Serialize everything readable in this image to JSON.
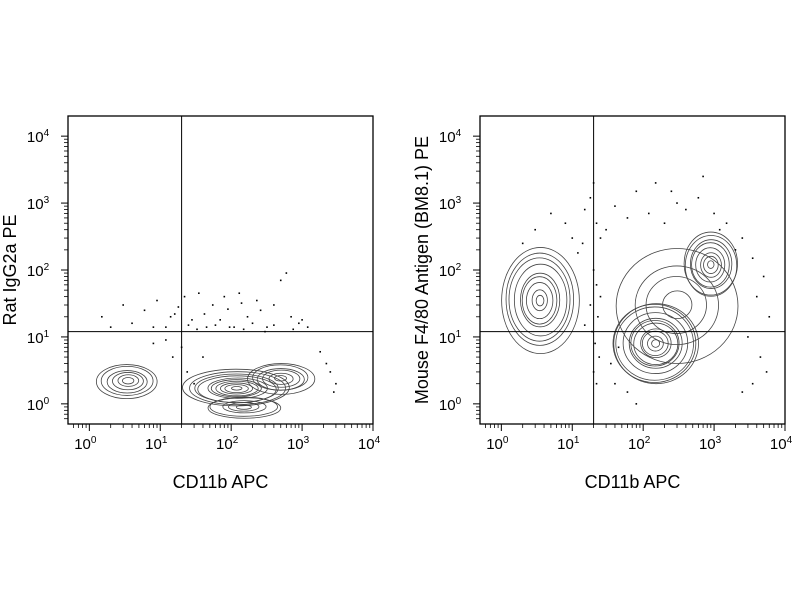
{
  "chart_data": [
    {
      "type": "scatter",
      "subtype": "flow-cytometry-contour",
      "xlabel": "CD11b APC",
      "ylabel": "Rat IgG2a PE",
      "xscale": "log",
      "yscale": "log",
      "xlim": [
        0.5,
        10000
      ],
      "ylim": [
        0.5,
        20000
      ],
      "x_ticks": [
        {
          "base": "10",
          "exp": "0",
          "value": 1
        },
        {
          "base": "10",
          "exp": "1",
          "value": 10
        },
        {
          "base": "10",
          "exp": "2",
          "value": 100
        },
        {
          "base": "10",
          "exp": "3",
          "value": 1000
        },
        {
          "base": "10",
          "exp": "4",
          "value": 10000
        }
      ],
      "y_ticks": [
        {
          "base": "10",
          "exp": "0",
          "value": 1
        },
        {
          "base": "10",
          "exp": "1",
          "value": 10
        },
        {
          "base": "10",
          "exp": "2",
          "value": 100
        },
        {
          "base": "10",
          "exp": "3",
          "value": 1000
        },
        {
          "base": "10",
          "exp": "4",
          "value": 10000
        }
      ],
      "gate": {
        "x": 20,
        "y": 12
      },
      "populations": [
        {
          "x": 3.5,
          "y": 2.2,
          "sx": 0.32,
          "sy": 0.19,
          "levels": 6
        },
        {
          "x": 120,
          "y": 1.7,
          "sx": 0.55,
          "sy": 0.2,
          "levels": 10
        },
        {
          "x": 500,
          "y": 2.4,
          "sx": 0.35,
          "sy": 0.17,
          "levels": 6
        },
        {
          "x": 150,
          "y": 0.9,
          "sx": 0.4,
          "sy": 0.12,
          "levels": 5
        }
      ],
      "events": [
        [
          3,
          30
        ],
        [
          6,
          25
        ],
        [
          9,
          35
        ],
        [
          14,
          20
        ],
        [
          18,
          28
        ],
        [
          22,
          40
        ],
        [
          28,
          18
        ],
        [
          35,
          45
        ],
        [
          42,
          22
        ],
        [
          55,
          30
        ],
        [
          70,
          18
        ],
        [
          90,
          26
        ],
        [
          110,
          14
        ],
        [
          140,
          32
        ],
        [
          170,
          20
        ],
        [
          200,
          16
        ],
        [
          260,
          25
        ],
        [
          320,
          14
        ],
        [
          400,
          30
        ],
        [
          500,
          70
        ],
        [
          600,
          90
        ],
        [
          700,
          20
        ],
        [
          900,
          16
        ],
        [
          1200,
          14
        ],
        [
          25,
          15
        ],
        [
          45,
          14
        ],
        [
          80,
          40
        ],
        [
          130,
          45
        ],
        [
          230,
          35
        ],
        [
          12,
          14
        ],
        [
          16,
          22
        ],
        [
          33,
          13
        ],
        [
          60,
          15
        ],
        [
          95,
          14
        ],
        [
          150,
          13
        ],
        [
          300,
          12
        ],
        [
          400,
          15
        ],
        [
          750,
          13
        ],
        [
          1000,
          18
        ],
        [
          8,
          14
        ],
        [
          4,
          16
        ],
        [
          2,
          14
        ],
        [
          1.5,
          20
        ],
        [
          2500,
          3
        ],
        [
          3000,
          2
        ],
        [
          2800,
          1.5
        ],
        [
          2200,
          4
        ],
        [
          1800,
          6
        ],
        [
          20,
          7
        ],
        [
          15,
          5
        ],
        [
          24,
          3
        ],
        [
          30,
          2
        ],
        [
          12,
          9
        ],
        [
          8,
          8
        ],
        [
          40,
          5
        ]
      ]
    },
    {
      "type": "scatter",
      "subtype": "flow-cytometry-contour",
      "xlabel": "CD11b APC",
      "ylabel": "Mouse F4/80 Antigen (BM8.1) PE",
      "xscale": "log",
      "yscale": "log",
      "xlim": [
        0.5,
        10000
      ],
      "ylim": [
        0.5,
        20000
      ],
      "x_ticks": [
        {
          "base": "10",
          "exp": "0",
          "value": 1
        },
        {
          "base": "10",
          "exp": "1",
          "value": 10
        },
        {
          "base": "10",
          "exp": "2",
          "value": 100
        },
        {
          "base": "10",
          "exp": "3",
          "value": 1000
        },
        {
          "base": "10",
          "exp": "4",
          "value": 10000
        }
      ],
      "y_ticks": [
        {
          "base": "10",
          "exp": "0",
          "value": 1
        },
        {
          "base": "10",
          "exp": "1",
          "value": 10
        },
        {
          "base": "10",
          "exp": "2",
          "value": 100
        },
        {
          "base": "10",
          "exp": "3",
          "value": 1000
        },
        {
          "base": "10",
          "exp": "4",
          "value": 10000
        }
      ],
      "gate": {
        "x": 20,
        "y": 12
      },
      "populations": [
        {
          "x": 3.5,
          "y": 35,
          "sx": 0.38,
          "sy": 0.55,
          "levels": 9
        },
        {
          "x": 150,
          "y": 8,
          "sx": 0.45,
          "sy": 0.45,
          "levels": 11
        },
        {
          "x": 900,
          "y": 120,
          "sx": 0.28,
          "sy": 0.35,
          "levels": 8
        },
        {
          "x": 300,
          "y": 30,
          "sx": 0.6,
          "sy": 0.6,
          "levels": 4
        }
      ],
      "events": [
        [
          20,
          2000
        ],
        [
          18,
          1200
        ],
        [
          15,
          800
        ],
        [
          22,
          500
        ],
        [
          25,
          300
        ],
        [
          14,
          250
        ],
        [
          30,
          400
        ],
        [
          40,
          900
        ],
        [
          60,
          600
        ],
        [
          80,
          1500
        ],
        [
          120,
          700
        ],
        [
          200,
          500
        ],
        [
          400,
          800
        ],
        [
          600,
          1200
        ],
        [
          1000,
          700
        ],
        [
          1500,
          500
        ],
        [
          2500,
          300
        ],
        [
          3500,
          150
        ],
        [
          5000,
          80
        ],
        [
          4000,
          40
        ],
        [
          6000,
          20
        ],
        [
          3000,
          10
        ],
        [
          4500,
          5
        ],
        [
          5500,
          3
        ],
        [
          3500,
          2
        ],
        [
          2500,
          1.5
        ],
        [
          10,
          300
        ],
        [
          8,
          500
        ],
        [
          5,
          700
        ],
        [
          3,
          400
        ],
        [
          2,
          250
        ],
        [
          12,
          180
        ],
        [
          20,
          100
        ],
        [
          22,
          60
        ],
        [
          25,
          40
        ],
        [
          18,
          30
        ],
        [
          23,
          20
        ],
        [
          19,
          12
        ],
        [
          21,
          8
        ],
        [
          24,
          5
        ],
        [
          20,
          3
        ],
        [
          22,
          2
        ],
        [
          60,
          1.5
        ],
        [
          80,
          1
        ],
        [
          40,
          2
        ],
        [
          35,
          4
        ],
        [
          45,
          7
        ],
        [
          15,
          15
        ],
        [
          300,
          1000
        ],
        [
          150,
          2000
        ],
        [
          250,
          1500
        ],
        [
          700,
          2500
        ],
        [
          1200,
          400
        ],
        [
          2000,
          200
        ]
      ]
    }
  ]
}
